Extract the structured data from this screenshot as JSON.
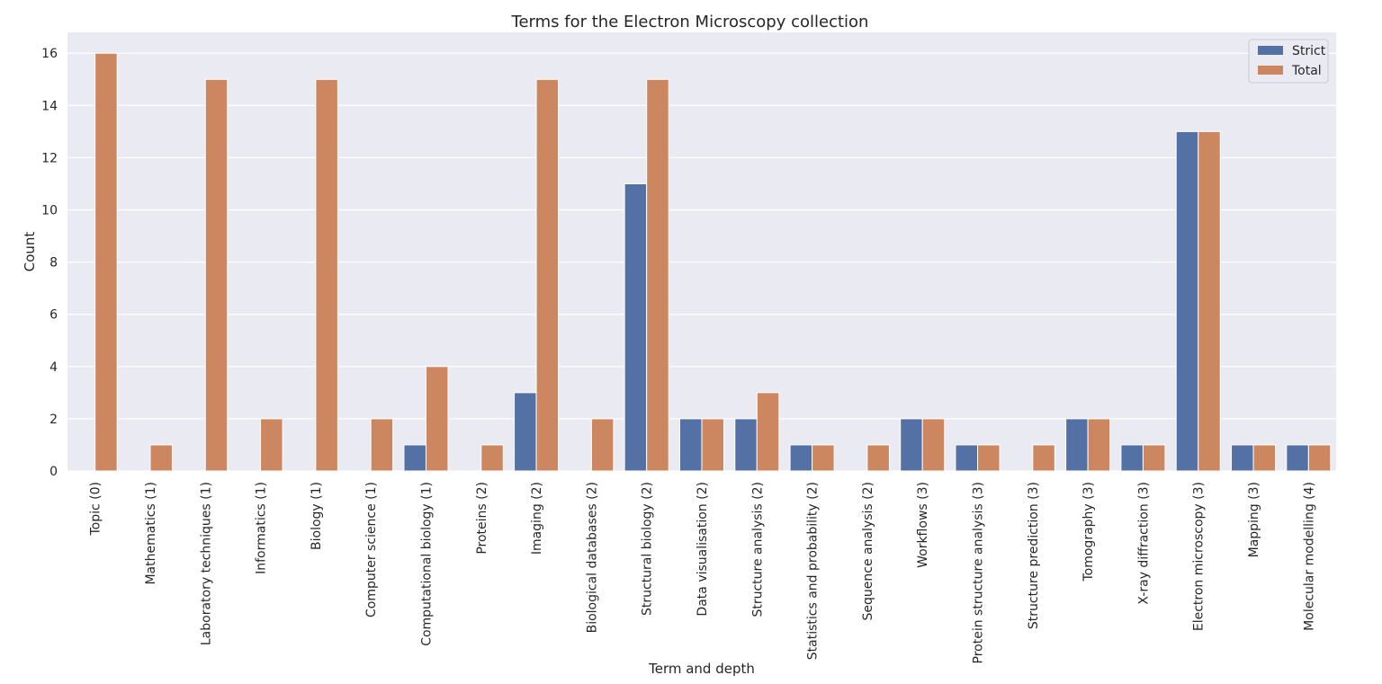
{
  "chart_data": {
    "type": "bar",
    "title": "Terms for the Electron Microscopy collection",
    "xlabel": "Term and depth",
    "ylabel": "Count",
    "ylim": [
      0,
      16.8
    ],
    "yticks": [
      0,
      2,
      4,
      6,
      8,
      10,
      12,
      14,
      16
    ],
    "grid": true,
    "legend_position": "top-right",
    "categories": [
      "Topic (0)",
      "Mathematics (1)",
      "Laboratory techniques (1)",
      "Informatics (1)",
      "Biology (1)",
      "Computer science (1)",
      "Computational biology (1)",
      "Proteins (2)",
      "Imaging (2)",
      "Biological databases (2)",
      "Structural biology (2)",
      "Data visualisation (2)",
      "Structure analysis (2)",
      "Statistics and probability (2)",
      "Sequence analysis (2)",
      "Workflows (3)",
      "Protein structure analysis (3)",
      "Structure prediction (3)",
      "Tomography (3)",
      "X-ray diffraction (3)",
      "Electron microscopy (3)",
      "Mapping (3)",
      "Molecular modelling (4)"
    ],
    "series": [
      {
        "name": "Strict",
        "color": "#5471a6",
        "values": [
          0,
          0,
          0,
          0,
          0,
          0,
          1,
          0,
          3,
          0,
          11,
          2,
          2,
          1,
          0,
          2,
          1,
          0,
          2,
          1,
          13,
          1,
          1
        ]
      },
      {
        "name": "Total",
        "color": "#cc8760",
        "values": [
          16,
          1,
          15,
          2,
          15,
          2,
          4,
          1,
          15,
          2,
          15,
          2,
          3,
          1,
          1,
          2,
          1,
          1,
          2,
          1,
          13,
          1,
          1
        ]
      }
    ]
  },
  "colors": {
    "plot_background": "#eaeaf2",
    "grid": "#ffffff",
    "text": "#262626"
  }
}
